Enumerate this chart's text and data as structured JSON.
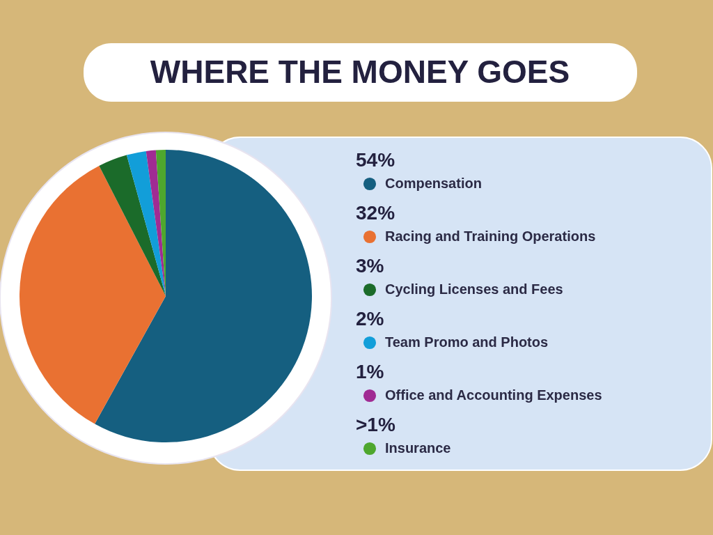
{
  "chart_data": {
    "type": "pie",
    "title": "WHERE THE MONEY GOES",
    "categories": [
      "Compensation",
      "Racing and Training Operations",
      "Cycling Licenses and Fees",
      "Team Promo and Photos",
      "Office and Accounting Expenses",
      "Insurance"
    ],
    "values": [
      54,
      32,
      3,
      2,
      1,
      1
    ],
    "value_labels": [
      "54%",
      "32%",
      "3%",
      "2%",
      "1%",
      ">1%"
    ],
    "colors": [
      "#155f80",
      "#e97132",
      "#1b6b2a",
      "#129ed9",
      "#a02b93",
      "#4ea72e"
    ],
    "legend": "right"
  }
}
